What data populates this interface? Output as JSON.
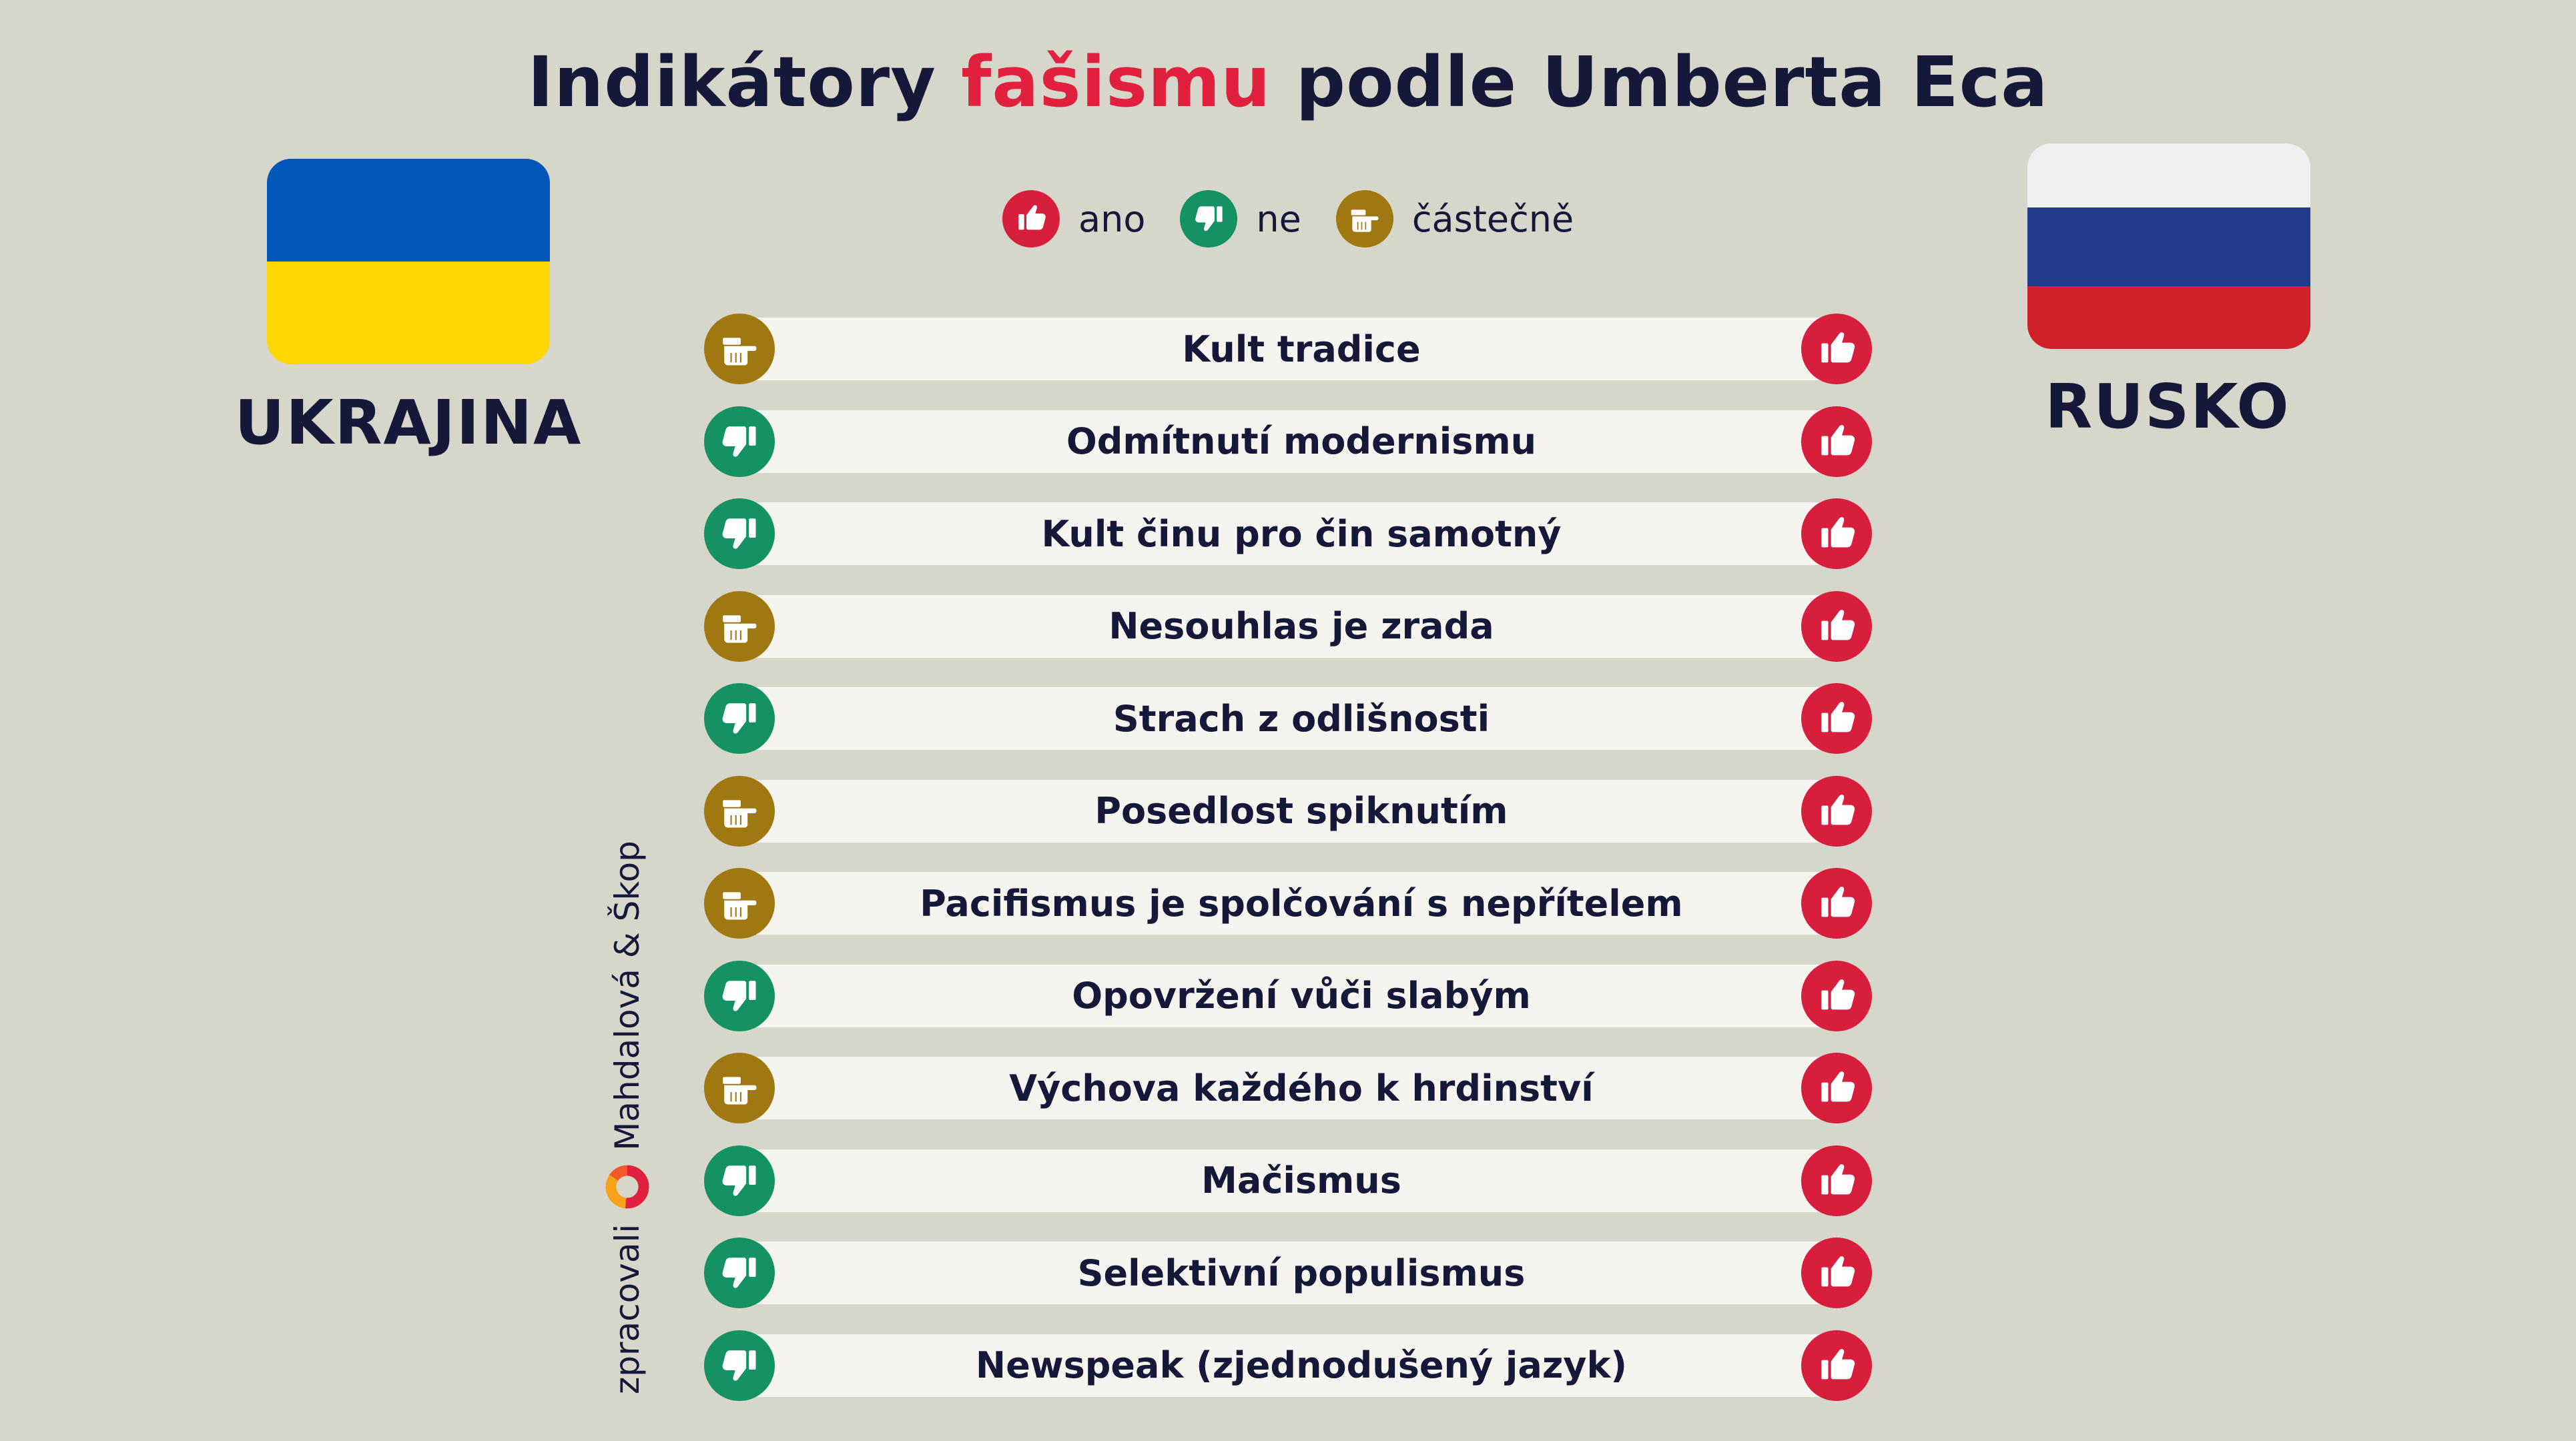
{
  "title": {
    "before": "Indikátory ",
    "accent": "fašismu",
    "after": " podle Umberta Eca"
  },
  "colors": {
    "yes": "#d81e3d",
    "no": "#159264",
    "partial": "#a07812",
    "accent": "#e0203c",
    "text": "#16183a",
    "background": "#d6d6cb"
  },
  "legend": [
    {
      "icon": "thumb-up-icon",
      "type": "yes",
      "label": "ano"
    },
    {
      "icon": "thumb-down-icon",
      "type": "no",
      "label": "ne"
    },
    {
      "icon": "thumb-sideways-icon",
      "type": "part",
      "label": "částečně"
    }
  ],
  "left_country": {
    "name": "UKRAJINA",
    "flag_colors": [
      "#0057b8",
      "#ffd700"
    ]
  },
  "right_country": {
    "name": "RUSKO",
    "flag_colors": [
      "#efefef",
      "#223c8c",
      "#d0202a"
    ]
  },
  "indicators": [
    {
      "label": "Kult tradice",
      "ukraine": "part",
      "russia": "yes"
    },
    {
      "label": "Odmítnutí modernismu",
      "ukraine": "no",
      "russia": "yes"
    },
    {
      "label": "Kult činu pro čin samotný",
      "ukraine": "no",
      "russia": "yes"
    },
    {
      "label": "Nesouhlas je zrada",
      "ukraine": "part",
      "russia": "yes"
    },
    {
      "label": "Strach z odlišnosti",
      "ukraine": "no",
      "russia": "yes"
    },
    {
      "label": "Posedlost spiknutím",
      "ukraine": "part",
      "russia": "yes"
    },
    {
      "label": "Pacifismus je spolčování s nepřítelem",
      "ukraine": "part",
      "russia": "yes"
    },
    {
      "label": "Opovržení vůči slabým",
      "ukraine": "no",
      "russia": "yes"
    },
    {
      "label": "Výchova každého k hrdinství",
      "ukraine": "part",
      "russia": "yes"
    },
    {
      "label": "Mačismus",
      "ukraine": "no",
      "russia": "yes"
    },
    {
      "label": "Selektivní populismus",
      "ukraine": "no",
      "russia": "yes"
    },
    {
      "label": "Newspeak (zjednodušený jazyk)",
      "ukraine": "no",
      "russia": "yes"
    }
  ],
  "credit": {
    "prefix": "zpracovali",
    "authors": "Mahdalová & Škop",
    "logo": "donut-logo-icon"
  }
}
